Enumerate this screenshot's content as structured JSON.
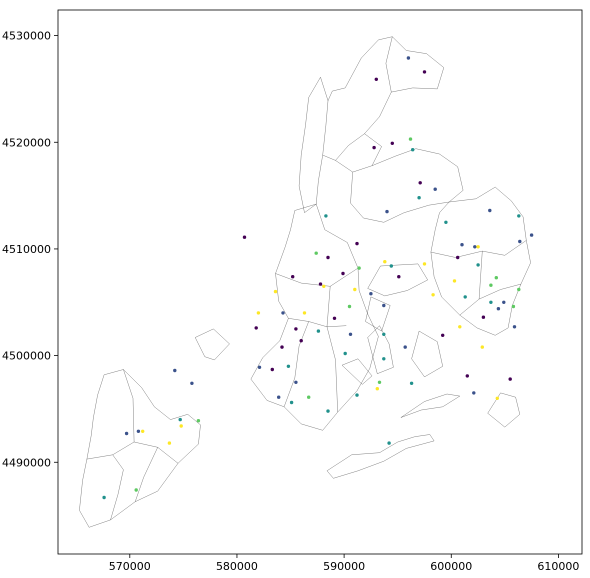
{
  "chart_data": {
    "type": "scatter",
    "title": "",
    "xlabel": "",
    "ylabel": "",
    "xlim": [
      563300,
      612200
    ],
    "ylim": [
      4481400,
      4532400
    ],
    "xticks": [
      570000,
      580000,
      590000,
      600000,
      610000
    ],
    "xtick_labels": [
      "570000",
      "580000",
      "590000",
      "600000",
      "610000"
    ],
    "yticks": [
      4490000,
      4500000,
      4510000,
      4520000,
      4530000
    ],
    "ytick_labels": [
      "4490000",
      "4500000",
      "4510000",
      "4520000",
      "4530000"
    ],
    "grid": false,
    "legend": "none",
    "palette": [
      "#440154",
      "#3b528b",
      "#21918c",
      "#5ec962",
      "#fde725"
    ],
    "boundaries": [
      [
        [
          565300,
          4485500
        ],
        [
          566200,
          4483900
        ],
        [
          568200,
          4484600
        ],
        [
          570500,
          4486300
        ],
        [
          572600,
          4487300
        ],
        [
          574500,
          4489900
        ],
        [
          576400,
          4491700
        ],
        [
          576600,
          4493500
        ],
        [
          575400,
          4494500
        ],
        [
          573800,
          4494000
        ],
        [
          572300,
          4495200
        ],
        [
          571100,
          4497000
        ],
        [
          569400,
          4498700
        ],
        [
          567600,
          4498200
        ],
        [
          567000,
          4496300
        ],
        [
          566600,
          4494200
        ],
        [
          566400,
          4492500
        ],
        [
          566000,
          4490300
        ],
        [
          565600,
          4488300
        ],
        [
          565300,
          4485500
        ]
      ],
      [
        [
          566000,
          4490300
        ],
        [
          568400,
          4490700
        ],
        [
          570400,
          4491900
        ],
        [
          572600,
          4491400
        ],
        [
          574500,
          4489900
        ]
      ],
      [
        [
          568200,
          4484600
        ],
        [
          568900,
          4487000
        ],
        [
          569400,
          4489300
        ],
        [
          568400,
          4490700
        ]
      ],
      [
        [
          570500,
          4486300
        ],
        [
          571300,
          4488600
        ],
        [
          572600,
          4491400
        ]
      ],
      [
        [
          569400,
          4498700
        ],
        [
          570300,
          4496000
        ],
        [
          570400,
          4491900
        ]
      ],
      [
        [
          576100,
          4501700
        ],
        [
          577800,
          4502500
        ],
        [
          579300,
          4501100
        ],
        [
          577900,
          4499600
        ],
        [
          577000,
          4499900
        ],
        [
          576100,
          4501700
        ]
      ],
      [
        [
          581300,
          4497800
        ],
        [
          582400,
          4499800
        ],
        [
          584000,
          4501400
        ],
        [
          584800,
          4503500
        ],
        [
          583900,
          4505100
        ],
        [
          583600,
          4507700
        ],
        [
          584500,
          4510200
        ],
        [
          585000,
          4511800
        ],
        [
          585400,
          4513600
        ],
        [
          587400,
          4514200
        ],
        [
          588200,
          4511800
        ],
        [
          590300,
          4510600
        ],
        [
          591300,
          4508200
        ],
        [
          591400,
          4506100
        ],
        [
          592200,
          4503900
        ],
        [
          593200,
          4501800
        ],
        [
          592400,
          4498800
        ],
        [
          591200,
          4496700
        ],
        [
          589400,
          4494700
        ],
        [
          588000,
          4493000
        ],
        [
          586000,
          4493600
        ],
        [
          584400,
          4495200
        ],
        [
          582800,
          4495800
        ],
        [
          581300,
          4497800
        ]
      ],
      [
        [
          584800,
          4503500
        ],
        [
          586700,
          4503200
        ],
        [
          588400,
          4502700
        ],
        [
          590200,
          4502800
        ]
      ],
      [
        [
          583600,
          4507700
        ],
        [
          586000,
          4506800
        ],
        [
          588700,
          4506500
        ],
        [
          591300,
          4508200
        ]
      ],
      [
        [
          584400,
          4495200
        ],
        [
          585400,
          4497900
        ],
        [
          585800,
          4500900
        ],
        [
          586700,
          4503200
        ]
      ],
      [
        [
          588700,
          4506500
        ],
        [
          588400,
          4502700
        ],
        [
          589200,
          4499600
        ],
        [
          589400,
          4494700
        ]
      ],
      [
        [
          586700,
          4524200
        ],
        [
          587800,
          4526100
        ],
        [
          588500,
          4523900
        ],
        [
          588300,
          4521600
        ],
        [
          588000,
          4518800
        ],
        [
          587600,
          4516400
        ],
        [
          587400,
          4514200
        ],
        [
          586300,
          4513400
        ],
        [
          585800,
          4515900
        ],
        [
          586000,
          4518800
        ],
        [
          586400,
          4521600
        ],
        [
          586700,
          4524200
        ]
      ],
      [
        [
          588000,
          4518800
        ],
        [
          589200,
          4518300
        ],
        [
          590400,
          4519700
        ],
        [
          591900,
          4520800
        ],
        [
          593300,
          4522400
        ],
        [
          594400,
          4524700
        ],
        [
          593900,
          4527400
        ],
        [
          594500,
          4529900
        ],
        [
          593200,
          4529600
        ],
        [
          591600,
          4527900
        ],
        [
          590100,
          4525100
        ],
        [
          588900,
          4524800
        ],
        [
          588500,
          4523900
        ]
      ],
      [
        [
          589200,
          4518300
        ],
        [
          590800,
          4517200
        ],
        [
          592600,
          4517800
        ],
        [
          593500,
          4519600
        ],
        [
          591900,
          4520800
        ]
      ],
      [
        [
          594400,
          4524700
        ],
        [
          596400,
          4525100
        ],
        [
          598700,
          4525000
        ],
        [
          599300,
          4527000
        ],
        [
          597700,
          4528300
        ],
        [
          595800,
          4528600
        ],
        [
          594500,
          4529900
        ]
      ],
      [
        [
          590800,
          4517200
        ],
        [
          590600,
          4514300
        ],
        [
          591800,
          4512900
        ],
        [
          593700,
          4512500
        ],
        [
          595600,
          4513400
        ],
        [
          597900,
          4514100
        ],
        [
          599800,
          4514400
        ],
        [
          601100,
          4515500
        ],
        [
          600600,
          4517700
        ],
        [
          598900,
          4518900
        ],
        [
          596700,
          4519400
        ],
        [
          594800,
          4518700
        ],
        [
          592600,
          4517800
        ]
      ],
      [
        [
          599800,
          4514400
        ],
        [
          602300,
          4514700
        ],
        [
          604100,
          4515800
        ],
        [
          605600,
          4514500
        ],
        [
          606700,
          4513000
        ],
        [
          607000,
          4510800
        ],
        [
          607400,
          4508700
        ],
        [
          606500,
          4506700
        ],
        [
          605700,
          4504700
        ],
        [
          605300,
          4502600
        ],
        [
          604100,
          4501900
        ],
        [
          602400,
          4502600
        ],
        [
          600800,
          4503800
        ],
        [
          599100,
          4505500
        ],
        [
          598400,
          4507400
        ],
        [
          598100,
          4509700
        ],
        [
          598500,
          4511800
        ],
        [
          598900,
          4513400
        ],
        [
          599800,
          4514400
        ]
      ],
      [
        [
          598100,
          4509700
        ],
        [
          600400,
          4509200
        ],
        [
          602900,
          4509800
        ],
        [
          605000,
          4509400
        ],
        [
          607000,
          4510800
        ]
      ],
      [
        [
          600800,
          4503800
        ],
        [
          602600,
          4505300
        ],
        [
          604600,
          4506200
        ],
        [
          606500,
          4506700
        ]
      ],
      [
        [
          602900,
          4509800
        ],
        [
          602600,
          4505300
        ]
      ],
      [
        [
          596900,
          4508600
        ],
        [
          593400,
          4508400
        ],
        [
          592200,
          4506300
        ],
        [
          593800,
          4505600
        ],
        [
          595900,
          4506100
        ],
        [
          597800,
          4507100
        ],
        [
          596900,
          4508600
        ]
      ],
      [
        [
          597000,
          4502300
        ],
        [
          598700,
          4501300
        ],
        [
          599200,
          4499000
        ],
        [
          597500,
          4498000
        ],
        [
          596300,
          4499700
        ],
        [
          597000,
          4502300
        ]
      ],
      [
        [
          592500,
          4505500
        ],
        [
          592000,
          4503200
        ],
        [
          593500,
          4502300
        ],
        [
          594300,
          4504700
        ],
        [
          592500,
          4505500
        ]
      ],
      [
        [
          589800,
          4499100
        ],
        [
          591300,
          4499700
        ],
        [
          592600,
          4498100
        ],
        [
          591700,
          4497300
        ],
        [
          589800,
          4499100
        ]
      ],
      [
        [
          592200,
          4501700
        ],
        [
          593300,
          4502800
        ],
        [
          594200,
          4501100
        ],
        [
          594600,
          4498900
        ],
        [
          593100,
          4498300
        ],
        [
          592200,
          4501700
        ]
      ],
      [
        [
          588400,
          4489200
        ],
        [
          590700,
          4490700
        ],
        [
          593300,
          4490900
        ],
        [
          595000,
          4491900
        ],
        [
          596600,
          4492400
        ],
        [
          598000,
          4492600
        ],
        [
          598400,
          4492000
        ],
        [
          597300,
          4491700
        ],
        [
          595800,
          4491300
        ],
        [
          593700,
          4490100
        ],
        [
          591300,
          4489200
        ],
        [
          589000,
          4488500
        ],
        [
          588400,
          4489200
        ]
      ],
      [
        [
          595300,
          4494200
        ],
        [
          597200,
          4494900
        ],
        [
          599200,
          4495200
        ],
        [
          600800,
          4496200
        ],
        [
          599600,
          4496400
        ],
        [
          597500,
          4495700
        ],
        [
          595300,
          4494200
        ]
      ],
      [
        [
          603400,
          4494600
        ],
        [
          604600,
          4496500
        ],
        [
          606000,
          4496100
        ],
        [
          606400,
          4494500
        ],
        [
          605000,
          4493300
        ],
        [
          603400,
          4494600
        ]
      ]
    ],
    "series": [
      {
        "x": [
          584200,
          585500,
          586000,
          593000,
          597500,
          594500,
          597100,
          591200,
          585200,
          588500,
          589900,
          595100,
          605500,
          603000,
          601500,
          581800,
          583300,
          589100,
          599200,
          592800,
          587800,
          580700,
          600600
        ],
        "y": [
          4500800,
          4502500,
          4501400,
          4525900,
          4526600,
          4519900,
          4516200,
          4510500,
          4507400,
          4509200,
          4507700,
          4507400,
          4497800,
          4503600,
          4498100,
          4502600,
          4498700,
          4503500,
          4501900,
          4519500,
          4506700,
          4511100,
          4509200
        ],
        "color_index": 0
      },
      {
        "x": [
          569700,
          570800,
          582100,
          583900,
          584300,
          585500,
          590600,
          592500,
          593700,
          596000,
          598500,
          601000,
          602200,
          603600,
          604400,
          604900,
          605900,
          606400,
          607500,
          602100,
          595700,
          594000,
          574200,
          575800
        ],
        "y": [
          4492700,
          4492900,
          4498900,
          4496100,
          4504000,
          4497500,
          4502000,
          4505800,
          4504700,
          4527900,
          4515600,
          4510400,
          4510200,
          4513600,
          4504400,
          4505000,
          4502700,
          4510700,
          4511300,
          4496500,
          4500800,
          4513500,
          4498600,
          4497400
        ],
        "color_index": 1
      },
      {
        "x": [
          567600,
          584800,
          585100,
          587600,
          588300,
          590100,
          594400,
          596400,
          601300,
          603700,
          606300,
          593700,
          597000,
          599500,
          602500,
          596300,
          588500,
          574700,
          591200,
          593700,
          594200
        ],
        "y": [
          4486700,
          4499000,
          4495600,
          4502300,
          4513100,
          4500200,
          4508400,
          4519300,
          4505500,
          4505000,
          4513100,
          4499700,
          4514800,
          4512500,
          4508500,
          4497400,
          4494800,
          4494000,
          4496300,
          4502000,
          4491800
        ],
        "color_index": 2
      },
      {
        "x": [
          576400,
          586700,
          590500,
          591400,
          596200,
          603700,
          606300,
          604200,
          605800,
          593300,
          587400,
          570600
        ],
        "y": [
          4493900,
          4496100,
          4504600,
          4508200,
          4520300,
          4506600,
          4506200,
          4507300,
          4504600,
          4497500,
          4509600,
          4487400
        ],
        "color_index": 3
      },
      {
        "x": [
          571200,
          573700,
          586300,
          591000,
          597500,
          598300,
          600300,
          600800,
          602500,
          602900,
          604300,
          588100,
          593800,
          582000,
          574800,
          583600,
          593100
        ],
        "y": [
          4492900,
          4491800,
          4504000,
          4506200,
          4508600,
          4505700,
          4507000,
          4502700,
          4510200,
          4500800,
          4496000,
          4506500,
          4508800,
          4504000,
          4493400,
          4506000,
          4496900
        ],
        "color_index": 4
      }
    ]
  }
}
